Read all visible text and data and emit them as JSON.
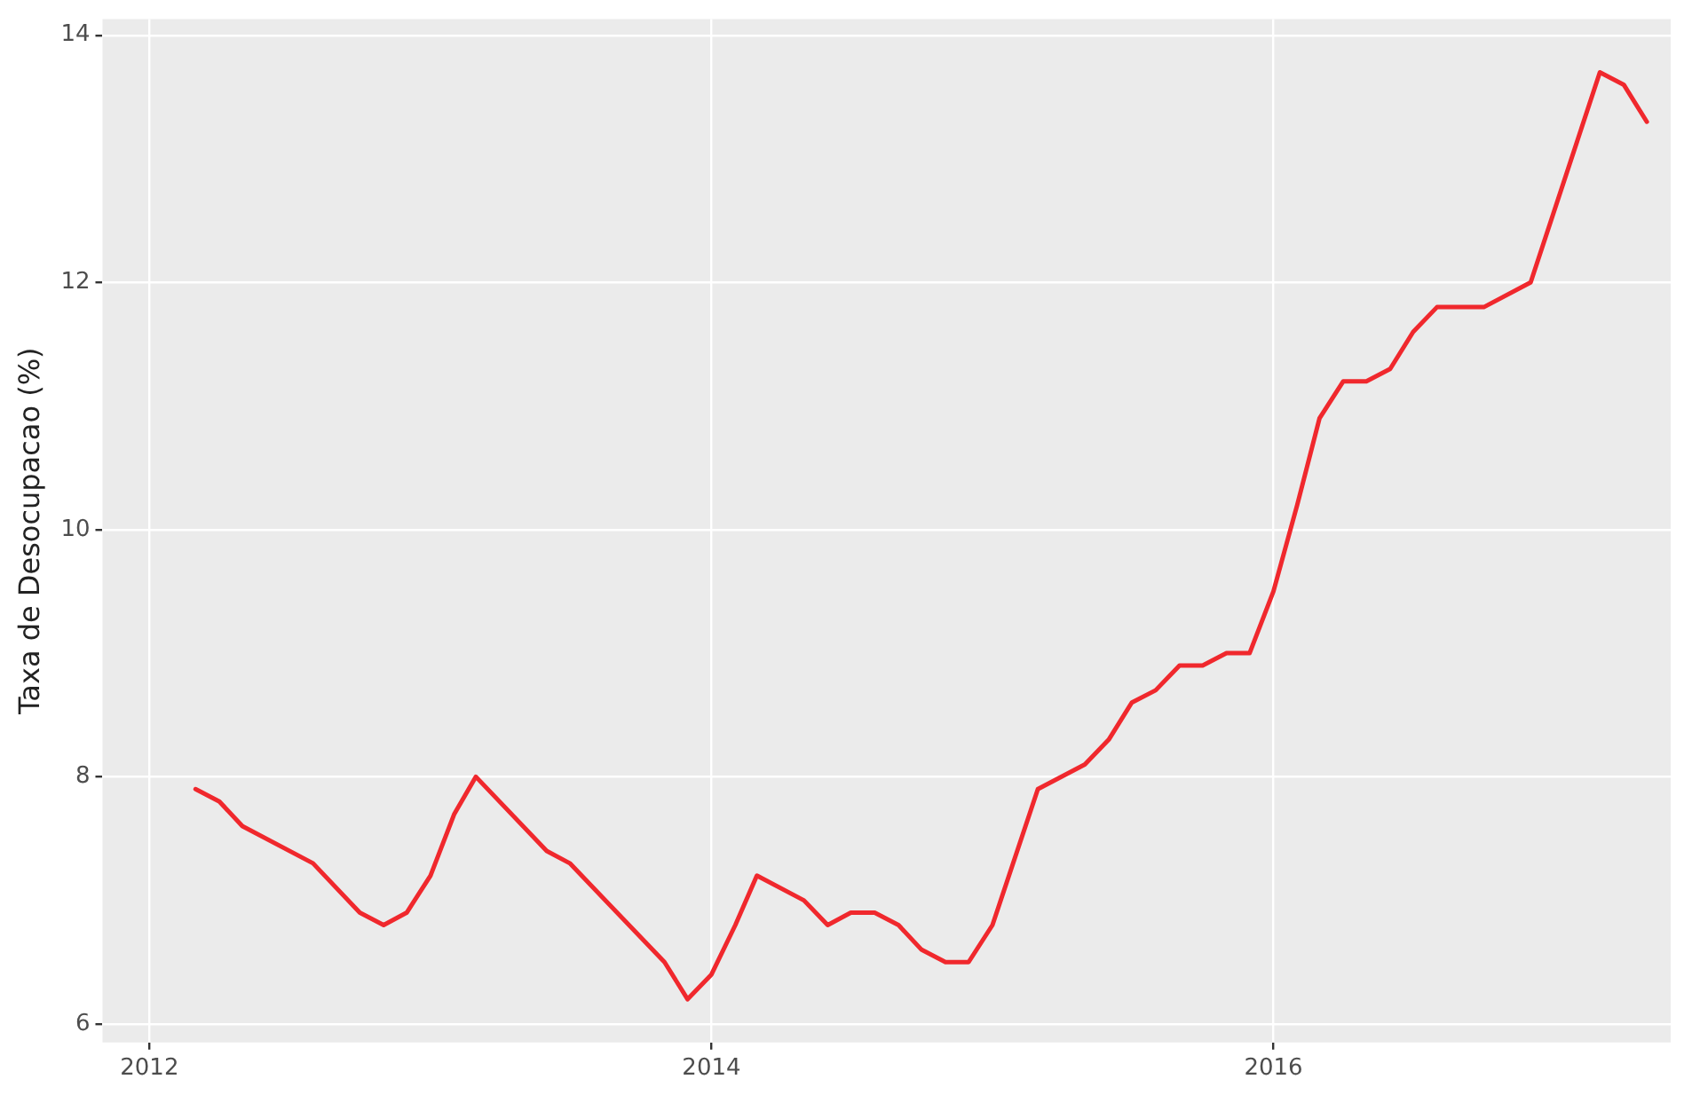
{
  "chart_data": {
    "type": "line",
    "ylabel": "Taxa de Desocupacao (%)",
    "x": [
      "2012-03",
      "2012-04",
      "2012-05",
      "2012-08",
      "2012-10",
      "2012-11",
      "2012-12",
      "2013-01",
      "2013-02",
      "2013-03",
      "2013-06",
      "2013-07",
      "2013-11",
      "2013-12",
      "2014-01",
      "2014-02",
      "2014-03",
      "2014-05",
      "2014-06",
      "2014-07",
      "2014-08",
      "2014-09",
      "2014-10",
      "2014-11",
      "2014-12",
      "2015-01",
      "2015-03",
      "2015-05",
      "2015-06",
      "2015-07",
      "2015-08",
      "2015-09",
      "2015-10",
      "2015-11",
      "2015-12",
      "2016-01",
      "2016-02",
      "2016-03",
      "2016-04",
      "2016-05",
      "2016-06",
      "2016-07",
      "2016-08",
      "2016-10",
      "2016-12",
      "2017-03",
      "2017-04",
      "2017-05"
    ],
    "series": [
      {
        "color": "#f0282d",
        "values": [
          7.9,
          7.8,
          7.6,
          7.3,
          6.9,
          6.8,
          6.9,
          7.2,
          7.7,
          8.0,
          7.4,
          7.3,
          6.5,
          6.2,
          6.4,
          6.8,
          7.2,
          7.0,
          6.8,
          6.9,
          6.9,
          6.8,
          6.6,
          6.5,
          6.5,
          6.8,
          7.9,
          8.1,
          8.3,
          8.6,
          8.7,
          8.9,
          8.9,
          9.0,
          9.0,
          9.5,
          10.2,
          10.9,
          11.2,
          11.2,
          11.3,
          11.6,
          11.8,
          11.8,
          12.0,
          13.7,
          13.6,
          13.3
        ]
      }
    ],
    "xlim": [
      "2011-11",
      "2017-06"
    ],
    "xticks": [
      "2012",
      "2014",
      "2016"
    ],
    "ylim": [
      5.85,
      14.13
    ],
    "yticks": [
      6,
      8,
      10,
      12,
      14
    ],
    "grid": true,
    "legend": false,
    "marker": "none",
    "line_style": "solid"
  }
}
